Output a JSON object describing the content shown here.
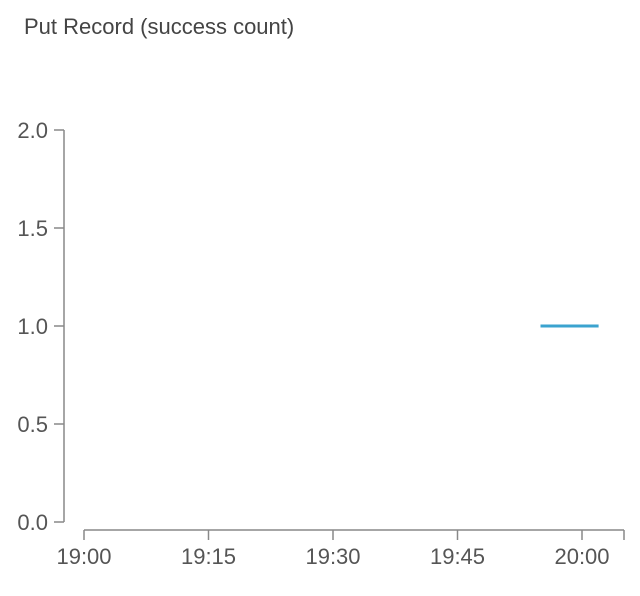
{
  "chart_data": {
    "type": "line",
    "title": "Put Record (success count)",
    "xlabel": "",
    "ylabel": "",
    "x_tick_labels": [
      "19:00",
      "19:15",
      "19:30",
      "19:45",
      "20:00"
    ],
    "y_tick_labels": [
      "0.0",
      "0.5",
      "1.0",
      "1.5",
      "2.0"
    ],
    "ylim": [
      0,
      2
    ],
    "xlim": [
      "19:00",
      "20:05"
    ],
    "grid": false,
    "series": [
      {
        "color": "#3ba3cf",
        "points": [
          {
            "x": "19:55",
            "y": 1.0
          },
          {
            "x": "20:02",
            "y": 1.0
          }
        ]
      }
    ]
  }
}
